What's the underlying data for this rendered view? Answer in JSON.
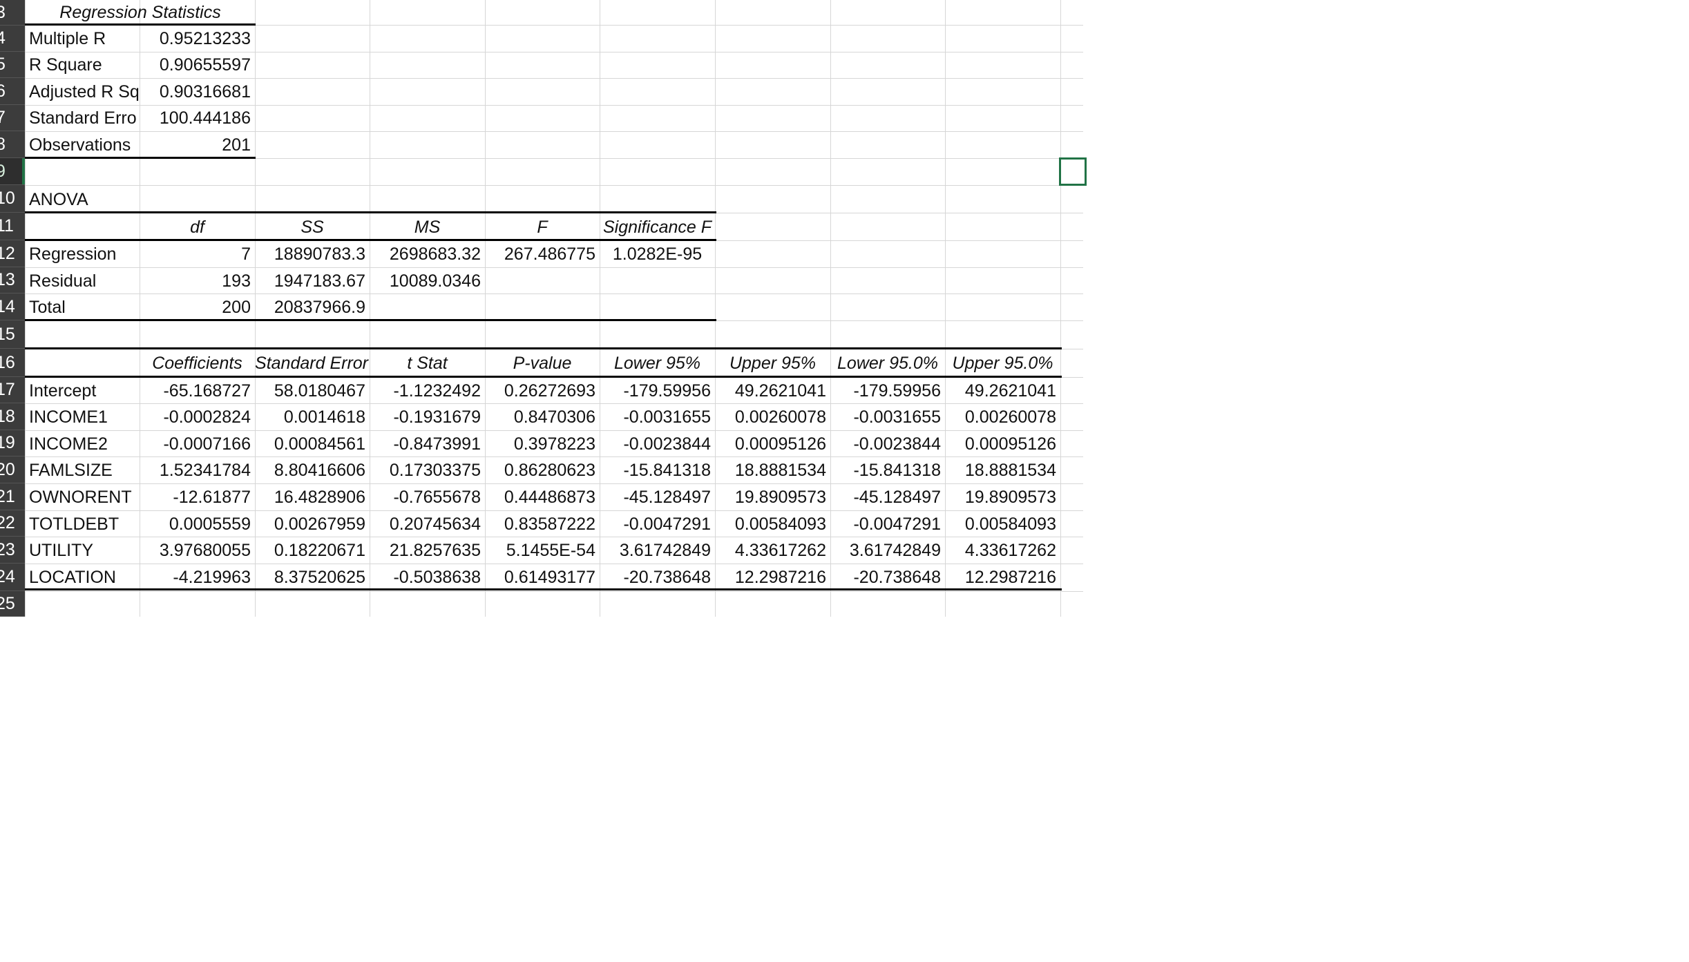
{
  "row_numbers": [
    "3",
    "4",
    "5",
    "6",
    "7",
    "8",
    "9",
    "10",
    "11",
    "12",
    "13",
    "14",
    "15",
    "16",
    "17",
    "18",
    "19",
    "20",
    "21",
    "22",
    "23",
    "24",
    "25"
  ],
  "selected_row": "9",
  "accent_color": "#217346",
  "regression_statistics": {
    "header": "Regression Statistics",
    "rows": [
      {
        "label": "Multiple R",
        "value": "0.95213233"
      },
      {
        "label": "R Square",
        "value": "0.90655597"
      },
      {
        "label": "Adjusted R Sq",
        "value": "0.90316681"
      },
      {
        "label": "Standard Erro",
        "value": "100.444186"
      },
      {
        "label": "Observations",
        "value": "201"
      }
    ]
  },
  "anova": {
    "title": "ANOVA",
    "headers": [
      "",
      "df",
      "SS",
      "MS",
      "F",
      "Significance F"
    ],
    "rows": [
      [
        "Regression",
        "7",
        "18890783.3",
        "2698683.32",
        "267.486775",
        "1.0282E-95"
      ],
      [
        "Residual",
        "193",
        "1947183.67",
        "10089.0346",
        "",
        ""
      ],
      [
        "Total",
        "200",
        "20837966.9",
        "",
        "",
        ""
      ]
    ]
  },
  "coefficients": {
    "headers": [
      "",
      "Coefficients",
      "Standard Error",
      "t Stat",
      "P-value",
      "Lower 95%",
      "Upper 95%",
      "Lower 95.0%",
      "Upper 95.0%"
    ],
    "rows": [
      [
        "Intercept",
        "-65.168727",
        "58.0180467",
        "-1.1232492",
        "0.26272693",
        "-179.59956",
        "49.2621041",
        "-179.59956",
        "49.2621041"
      ],
      [
        "INCOME1",
        "-0.0002824",
        "0.0014618",
        "-0.1931679",
        "0.8470306",
        "-0.0031655",
        "0.00260078",
        "-0.0031655",
        "0.00260078"
      ],
      [
        "INCOME2",
        "-0.0007166",
        "0.00084561",
        "-0.8473991",
        "0.3978223",
        "-0.0023844",
        "0.00095126",
        "-0.0023844",
        "0.00095126"
      ],
      [
        "FAMLSIZE",
        "1.52341784",
        "8.80416606",
        "0.17303375",
        "0.86280623",
        "-15.841318",
        "18.8881534",
        "-15.841318",
        "18.8881534"
      ],
      [
        "OWNORENT",
        "-12.61877",
        "16.4828906",
        "-0.7655678",
        "0.44486873",
        "-45.128497",
        "19.8909573",
        "-45.128497",
        "19.8909573"
      ],
      [
        "TOTLDEBT",
        "0.0005559",
        "0.00267959",
        "0.20745634",
        "0.83587222",
        "-0.0047291",
        "0.00584093",
        "-0.0047291",
        "0.00584093"
      ],
      [
        "UTILITY",
        "3.97680055",
        "0.18220671",
        "21.8257635",
        "5.1455E-54",
        "3.61742849",
        "4.33617262",
        "3.61742849",
        "4.33617262"
      ],
      [
        "LOCATION",
        "-4.219963",
        "8.37520625",
        "-0.5038638",
        "0.61493177",
        "-20.738648",
        "12.2987216",
        "-20.738648",
        "12.2987216"
      ]
    ]
  }
}
